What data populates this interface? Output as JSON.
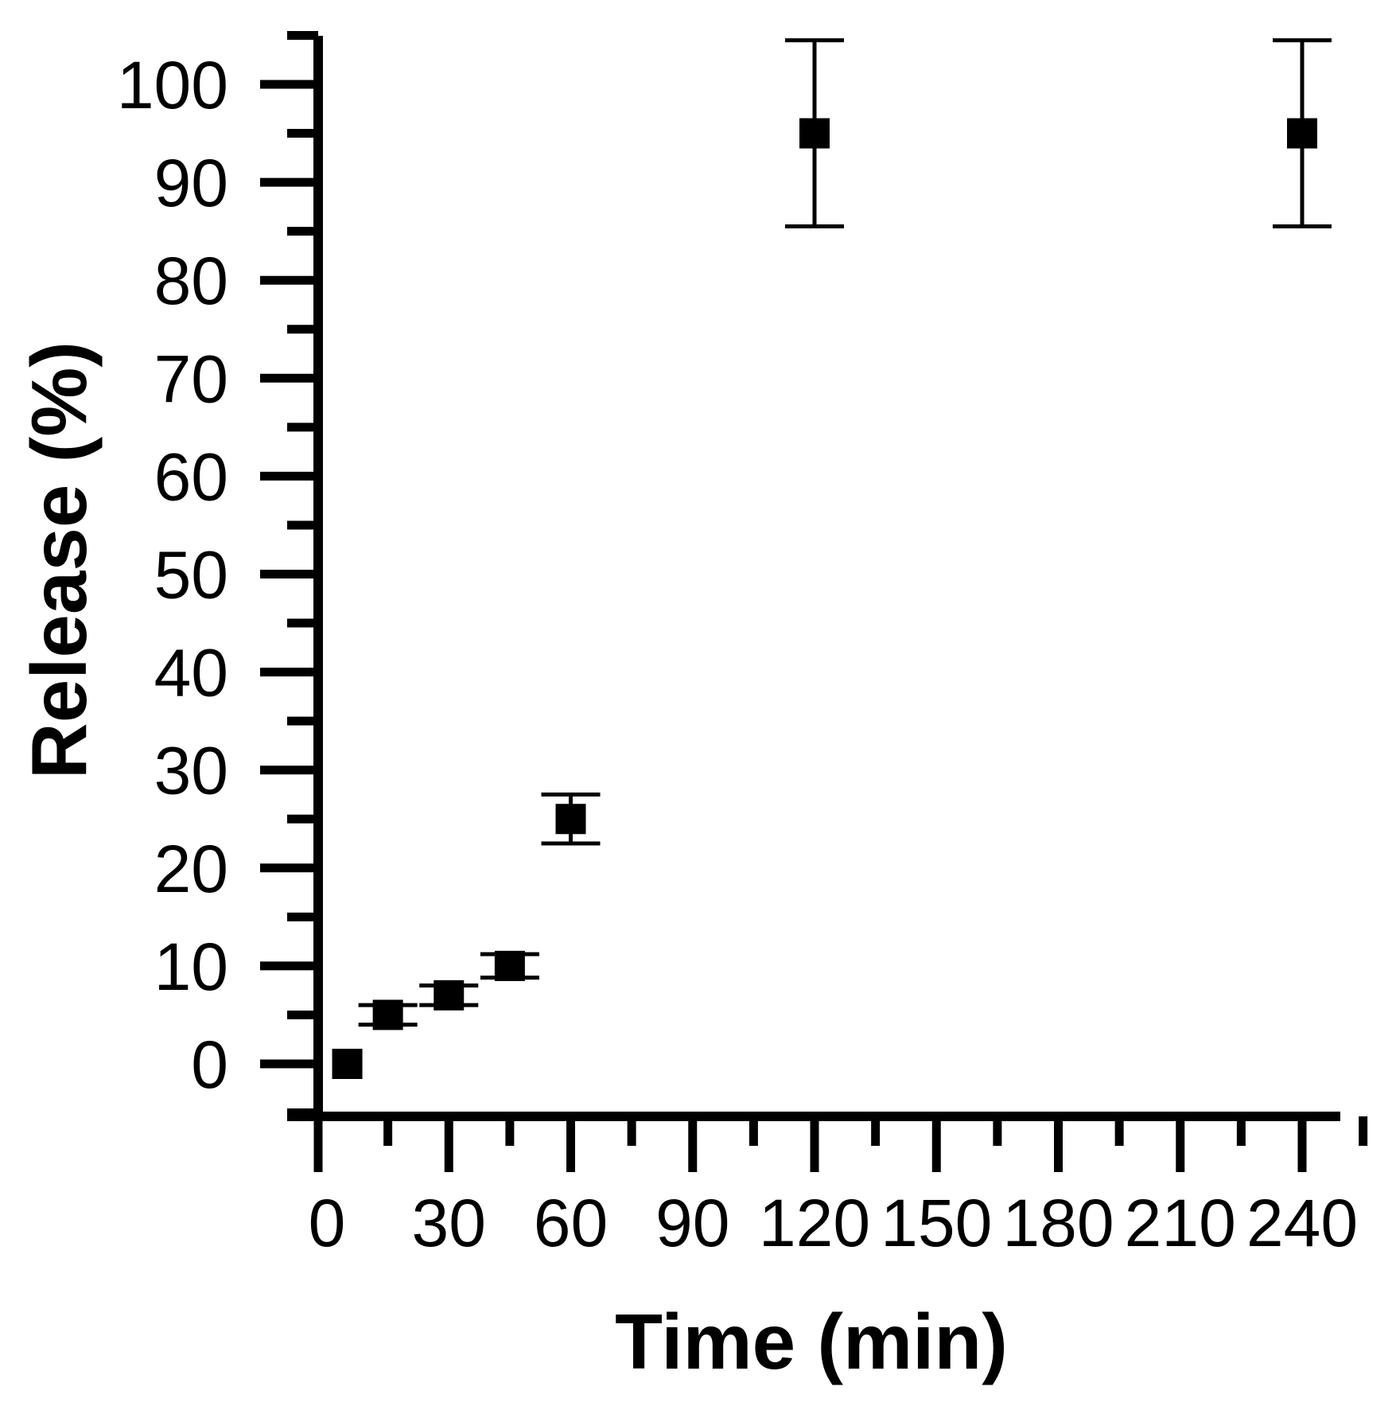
{
  "chart_data": {
    "type": "scatter",
    "title": "",
    "xlabel": "Time (min)",
    "ylabel": "Release (%)",
    "xlim": [
      0,
      255
    ],
    "ylim": [
      -10,
      105
    ],
    "x_ticks": [
      0,
      30,
      60,
      90,
      120,
      150,
      180,
      210,
      240
    ],
    "x_tick_labels": [
      "0",
      "30",
      "60",
      "90",
      "120",
      "150",
      "180",
      "210",
      "240"
    ],
    "y_ticks": [
      0,
      10,
      20,
      30,
      40,
      50,
      60,
      70,
      80,
      90,
      100
    ],
    "y_tick_labels": [
      "0",
      "10",
      "20",
      "30",
      "40",
      "50",
      "60",
      "70",
      "80",
      "90",
      "100"
    ],
    "grid": false,
    "marker": "square",
    "color": "#000000",
    "series": [
      {
        "points": [
          {
            "x": 5,
            "y": 0,
            "err": 0
          },
          {
            "x": 15,
            "y": 5,
            "err": 1
          },
          {
            "x": 30,
            "y": 7,
            "err": 1
          },
          {
            "x": 45,
            "y": 10,
            "err": 1.2
          },
          {
            "x": 60,
            "y": 25,
            "err": 2.5
          },
          {
            "x": 120,
            "y": 95,
            "err": 9.5
          },
          {
            "x": 240,
            "y": 95,
            "err": 9.5
          }
        ]
      }
    ]
  }
}
